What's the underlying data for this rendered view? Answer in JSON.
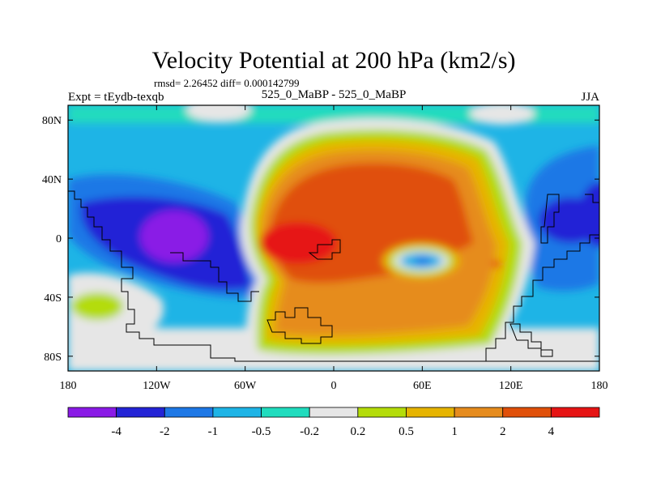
{
  "chart_data": {
    "type": "heatmap",
    "title": "Velocity Potential at 200 hPa (km2/s)",
    "stats": "rmsd= 2.26452 diff= 0.000142799",
    "left_label": "Expt = tEydb-texqb",
    "center_label": "525_0_MaBP - 525_0_MaBP",
    "right_label": "JJA",
    "x_ticks": [
      {
        "lon": -180,
        "label": "180"
      },
      {
        "lon": -120,
        "label": "120W"
      },
      {
        "lon": -60,
        "label": "60W"
      },
      {
        "lon": 0,
        "label": "0"
      },
      {
        "lon": 60,
        "label": "60E"
      },
      {
        "lon": 120,
        "label": "120E"
      },
      {
        "lon": 180,
        "label": "180"
      }
    ],
    "y_ticks": [
      {
        "lat": 80,
        "label": "80N"
      },
      {
        "lat": 40,
        "label": "40N"
      },
      {
        "lat": 0,
        "label": "0"
      },
      {
        "lat": -40,
        "label": "40S"
      },
      {
        "lat": -80,
        "label": "80S"
      }
    ],
    "xlim": [
      -180,
      180
    ],
    "ylim": [
      -90,
      90
    ],
    "colorbar": {
      "levels": [
        "-4",
        "-2",
        "-1",
        "-0.5",
        "-0.2",
        "0.2",
        "0.5",
        "1",
        "2",
        "4"
      ],
      "colors": [
        "#8a1ae6",
        "#2424d6",
        "#1e78e6",
        "#1eb4e6",
        "#20dcbe",
        "#e6e6e6",
        "#b4dc0a",
        "#e6b400",
        "#e68c1e",
        "#e0500a",
        "#e61414"
      ]
    },
    "field_features": [
      {
        "name": "divergent center",
        "lon": -15,
        "lat": 0,
        "value": 3.6
      },
      {
        "name": "convergent center",
        "lon": -120,
        "lat": 0,
        "value": -4.3
      },
      {
        "name": "embedded low",
        "lon": 45,
        "lat": -13,
        "value": -0.9
      },
      {
        "name": "east Pacific low",
        "lon": 165,
        "lat": 10,
        "value": -2.3
      }
    ]
  }
}
